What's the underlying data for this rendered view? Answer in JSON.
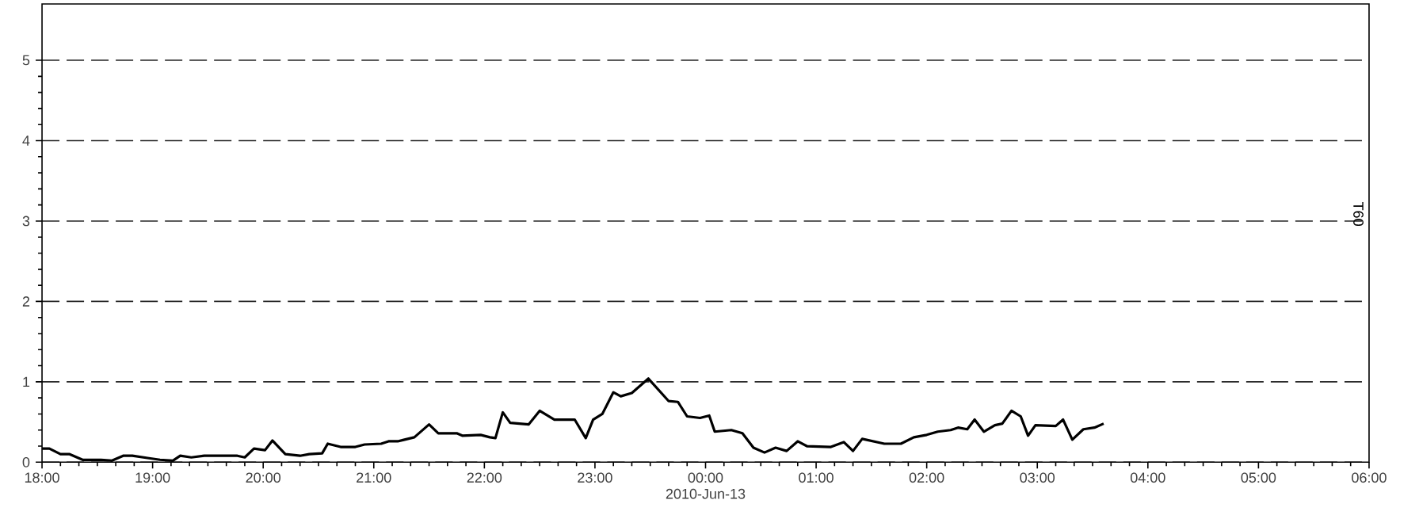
{
  "chart_data": {
    "type": "line",
    "xlabel": "2010-Jun-13",
    "ylabel": "T60",
    "xlim": [
      "2010-06-12T18:00",
      "2010-06-13T06:00"
    ],
    "ylim": [
      0,
      5.7
    ],
    "xticks": [
      {
        "value": "2010-06-12T18:00",
        "label": "18:00"
      },
      {
        "value": "2010-06-12T19:00",
        "label": "19:00"
      },
      {
        "value": "2010-06-12T20:00",
        "label": "20:00"
      },
      {
        "value": "2010-06-12T21:00",
        "label": "21:00"
      },
      {
        "value": "2010-06-12T22:00",
        "label": "22:00"
      },
      {
        "value": "2010-06-12T23:00",
        "label": "23:00"
      },
      {
        "value": "2010-06-13T00:00",
        "label": "00:00"
      },
      {
        "value": "2010-06-13T01:00",
        "label": "01:00"
      },
      {
        "value": "2010-06-13T02:00",
        "label": "02:00"
      },
      {
        "value": "2010-06-13T03:00",
        "label": "03:00"
      },
      {
        "value": "2010-06-13T04:00",
        "label": "04:00"
      },
      {
        "value": "2010-06-13T05:00",
        "label": "05:00"
      },
      {
        "value": "2010-06-13T06:00",
        "label": "06:00"
      }
    ],
    "yticks": [
      0,
      1,
      2,
      3,
      4,
      5
    ],
    "grid": "y",
    "marker": "none",
    "line_style": "solid",
    "series": [
      {
        "color": "#000000",
        "x": [
          "2010-06-12T18:00",
          "2010-06-12T18:04",
          "2010-06-12T18:10",
          "2010-06-12T18:15",
          "2010-06-12T18:22",
          "2010-06-12T18:32",
          "2010-06-12T18:38",
          "2010-06-12T18:44",
          "2010-06-12T18:49",
          "2010-06-12T18:58",
          "2010-06-12T19:04",
          "2010-06-12T19:11",
          "2010-06-12T19:15",
          "2010-06-12T19:21",
          "2010-06-12T19:28",
          "2010-06-12T19:46",
          "2010-06-12T19:50",
          "2010-06-12T19:55",
          "2010-06-12T20:01",
          "2010-06-12T20:05",
          "2010-06-12T20:12",
          "2010-06-12T20:20",
          "2010-06-12T20:25",
          "2010-06-12T20:32",
          "2010-06-12T20:35",
          "2010-06-12T20:42",
          "2010-06-12T20:50",
          "2010-06-12T20:55",
          "2010-06-12T21:04",
          "2010-06-12T21:08",
          "2010-06-12T21:13",
          "2010-06-12T21:22",
          "2010-06-12T21:30",
          "2010-06-12T21:35",
          "2010-06-12T21:45",
          "2010-06-12T21:48",
          "2010-06-12T21:58",
          "2010-06-12T22:03",
          "2010-06-12T22:06",
          "2010-06-12T22:10",
          "2010-06-12T22:14",
          "2010-06-12T22:24",
          "2010-06-12T22:30",
          "2010-06-12T22:38",
          "2010-06-12T22:49",
          "2010-06-12T22:55",
          "2010-06-12T22:59",
          "2010-06-12T23:04",
          "2010-06-12T23:10",
          "2010-06-12T23:14",
          "2010-06-12T23:20",
          "2010-06-12T23:29",
          "2010-06-12T23:40",
          "2010-06-12T23:45",
          "2010-06-12T23:50",
          "2010-06-12T23:57",
          "2010-06-13T00:02",
          "2010-06-13T00:05",
          "2010-06-13T00:14",
          "2010-06-13T00:20",
          "2010-06-13T00:26",
          "2010-06-13T00:32",
          "2010-06-13T00:38",
          "2010-06-13T00:44",
          "2010-06-13T00:50",
          "2010-06-13T00:55",
          "2010-06-13T01:08",
          "2010-06-13T01:15",
          "2010-06-13T01:20",
          "2010-06-13T01:25",
          "2010-06-13T01:37",
          "2010-06-13T01:46",
          "2010-06-13T01:53",
          "2010-06-13T02:00",
          "2010-06-13T02:06",
          "2010-06-13T02:13",
          "2010-06-13T02:17",
          "2010-06-13T02:22",
          "2010-06-13T02:26",
          "2010-06-13T02:31",
          "2010-06-13T02:37",
          "2010-06-13T02:41",
          "2010-06-13T02:46",
          "2010-06-13T02:51",
          "2010-06-13T02:55",
          "2010-06-13T02:59",
          "2010-06-13T03:10",
          "2010-06-13T03:14",
          "2010-06-13T03:19",
          "2010-06-13T03:25",
          "2010-06-13T03:31",
          "2010-06-13T03:36"
        ],
        "values": [
          0.17,
          0.17,
          0.1,
          0.1,
          0.03,
          0.03,
          0.02,
          0.08,
          0.08,
          0.05,
          0.03,
          0.02,
          0.08,
          0.06,
          0.08,
          0.08,
          0.06,
          0.17,
          0.15,
          0.27,
          0.1,
          0.08,
          0.1,
          0.11,
          0.23,
          0.19,
          0.19,
          0.22,
          0.23,
          0.26,
          0.26,
          0.31,
          0.47,
          0.36,
          0.36,
          0.33,
          0.34,
          0.31,
          0.3,
          0.62,
          0.49,
          0.47,
          0.64,
          0.53,
          0.53,
          0.3,
          0.53,
          0.6,
          0.87,
          0.82,
          0.86,
          1.04,
          0.76,
          0.75,
          0.57,
          0.55,
          0.58,
          0.38,
          0.4,
          0.36,
          0.18,
          0.12,
          0.18,
          0.14,
          0.26,
          0.2,
          0.19,
          0.25,
          0.14,
          0.29,
          0.23,
          0.23,
          0.31,
          0.34,
          0.38,
          0.4,
          0.43,
          0.41,
          0.53,
          0.38,
          0.46,
          0.48,
          0.64,
          0.57,
          0.33,
          0.46,
          0.45,
          0.53,
          0.28,
          0.41,
          0.43,
          0.48
        ]
      }
    ]
  }
}
